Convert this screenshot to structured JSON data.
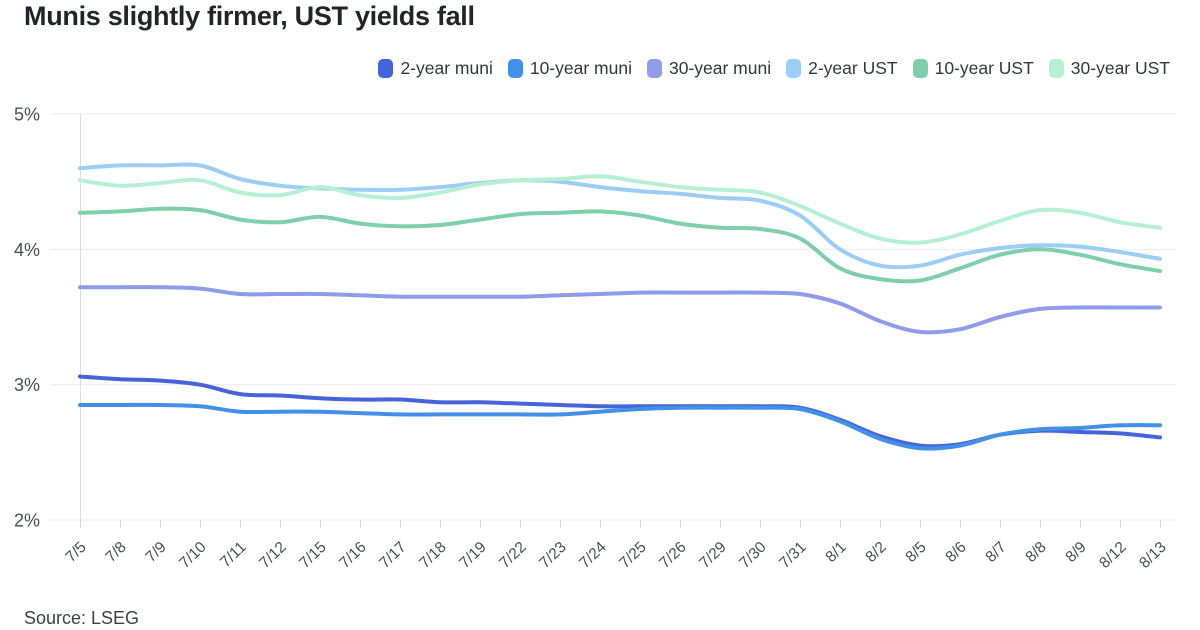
{
  "header": {
    "title": "Munis slightly firmer, UST yields fall"
  },
  "source": {
    "label": "Source: LSEG"
  },
  "chart_data": {
    "type": "line",
    "title": "Munis slightly firmer, UST yields fall",
    "xlabel": "",
    "ylabel": "",
    "ylim": [
      2,
      5
    ],
    "yticks": [
      5,
      4,
      3,
      2
    ],
    "ytick_suffix": "%",
    "grid": true,
    "legend_position": "top-right",
    "x": [
      "7/5",
      "7/8",
      "7/9",
      "7/10",
      "7/11",
      "7/12",
      "7/15",
      "7/16",
      "7/17",
      "7/18",
      "7/19",
      "7/22",
      "7/23",
      "7/24",
      "7/25",
      "7/26",
      "7/29",
      "7/30",
      "7/31",
      "8/1",
      "8/2",
      "8/5",
      "8/6",
      "8/7",
      "8/8",
      "8/9",
      "8/12",
      "8/13"
    ],
    "series": [
      {
        "name": "2-year muni",
        "color": "#4564da",
        "values": [
          3.06,
          3.04,
          3.03,
          3.0,
          2.93,
          2.92,
          2.9,
          2.89,
          2.89,
          2.87,
          2.87,
          2.86,
          2.85,
          2.84,
          2.84,
          2.84,
          2.84,
          2.84,
          2.83,
          2.74,
          2.62,
          2.55,
          2.56,
          2.63,
          2.66,
          2.65,
          2.64,
          2.61
        ]
      },
      {
        "name": "10-year muni",
        "color": "#4390e8",
        "values": [
          2.85,
          2.85,
          2.85,
          2.84,
          2.8,
          2.8,
          2.8,
          2.79,
          2.78,
          2.78,
          2.78,
          2.78,
          2.78,
          2.8,
          2.82,
          2.83,
          2.83,
          2.83,
          2.82,
          2.73,
          2.6,
          2.53,
          2.55,
          2.63,
          2.67,
          2.68,
          2.7,
          2.7
        ]
      },
      {
        "name": "30-year muni",
        "color": "#8f9cea",
        "values": [
          3.72,
          3.72,
          3.72,
          3.71,
          3.67,
          3.67,
          3.67,
          3.66,
          3.65,
          3.65,
          3.65,
          3.65,
          3.66,
          3.67,
          3.68,
          3.68,
          3.68,
          3.68,
          3.67,
          3.6,
          3.47,
          3.39,
          3.41,
          3.5,
          3.56,
          3.57,
          3.57,
          3.57
        ]
      },
      {
        "name": "2-year UST",
        "color": "#9bcdf5",
        "values": [
          4.6,
          4.62,
          4.62,
          4.62,
          4.52,
          4.47,
          4.45,
          4.44,
          4.44,
          4.46,
          4.49,
          4.51,
          4.5,
          4.46,
          4.43,
          4.41,
          4.38,
          4.36,
          4.25,
          4.0,
          3.88,
          3.88,
          3.96,
          4.01,
          4.03,
          4.02,
          3.98,
          3.93
        ]
      },
      {
        "name": "10-year UST",
        "color": "#7ecfaa",
        "values": [
          4.27,
          4.28,
          4.3,
          4.29,
          4.22,
          4.2,
          4.24,
          4.19,
          4.17,
          4.18,
          4.22,
          4.26,
          4.27,
          4.28,
          4.25,
          4.19,
          4.16,
          4.15,
          4.08,
          3.86,
          3.78,
          3.77,
          3.86,
          3.96,
          4.0,
          3.96,
          3.89,
          3.84
        ]
      },
      {
        "name": "30-year UST",
        "color": "#b6f0d3",
        "values": [
          4.51,
          4.47,
          4.49,
          4.51,
          4.42,
          4.4,
          4.46,
          4.4,
          4.38,
          4.42,
          4.48,
          4.51,
          4.52,
          4.54,
          4.5,
          4.46,
          4.44,
          4.42,
          4.32,
          4.19,
          4.08,
          4.05,
          4.11,
          4.21,
          4.29,
          4.27,
          4.2,
          4.16
        ]
      }
    ]
  },
  "style": {
    "grid_color": "#ebebeb",
    "axis_color": "#dcdcdc",
    "tick_color": "#d6d6d6",
    "tick_label_color": "#4a4e54",
    "line_width": 4
  }
}
